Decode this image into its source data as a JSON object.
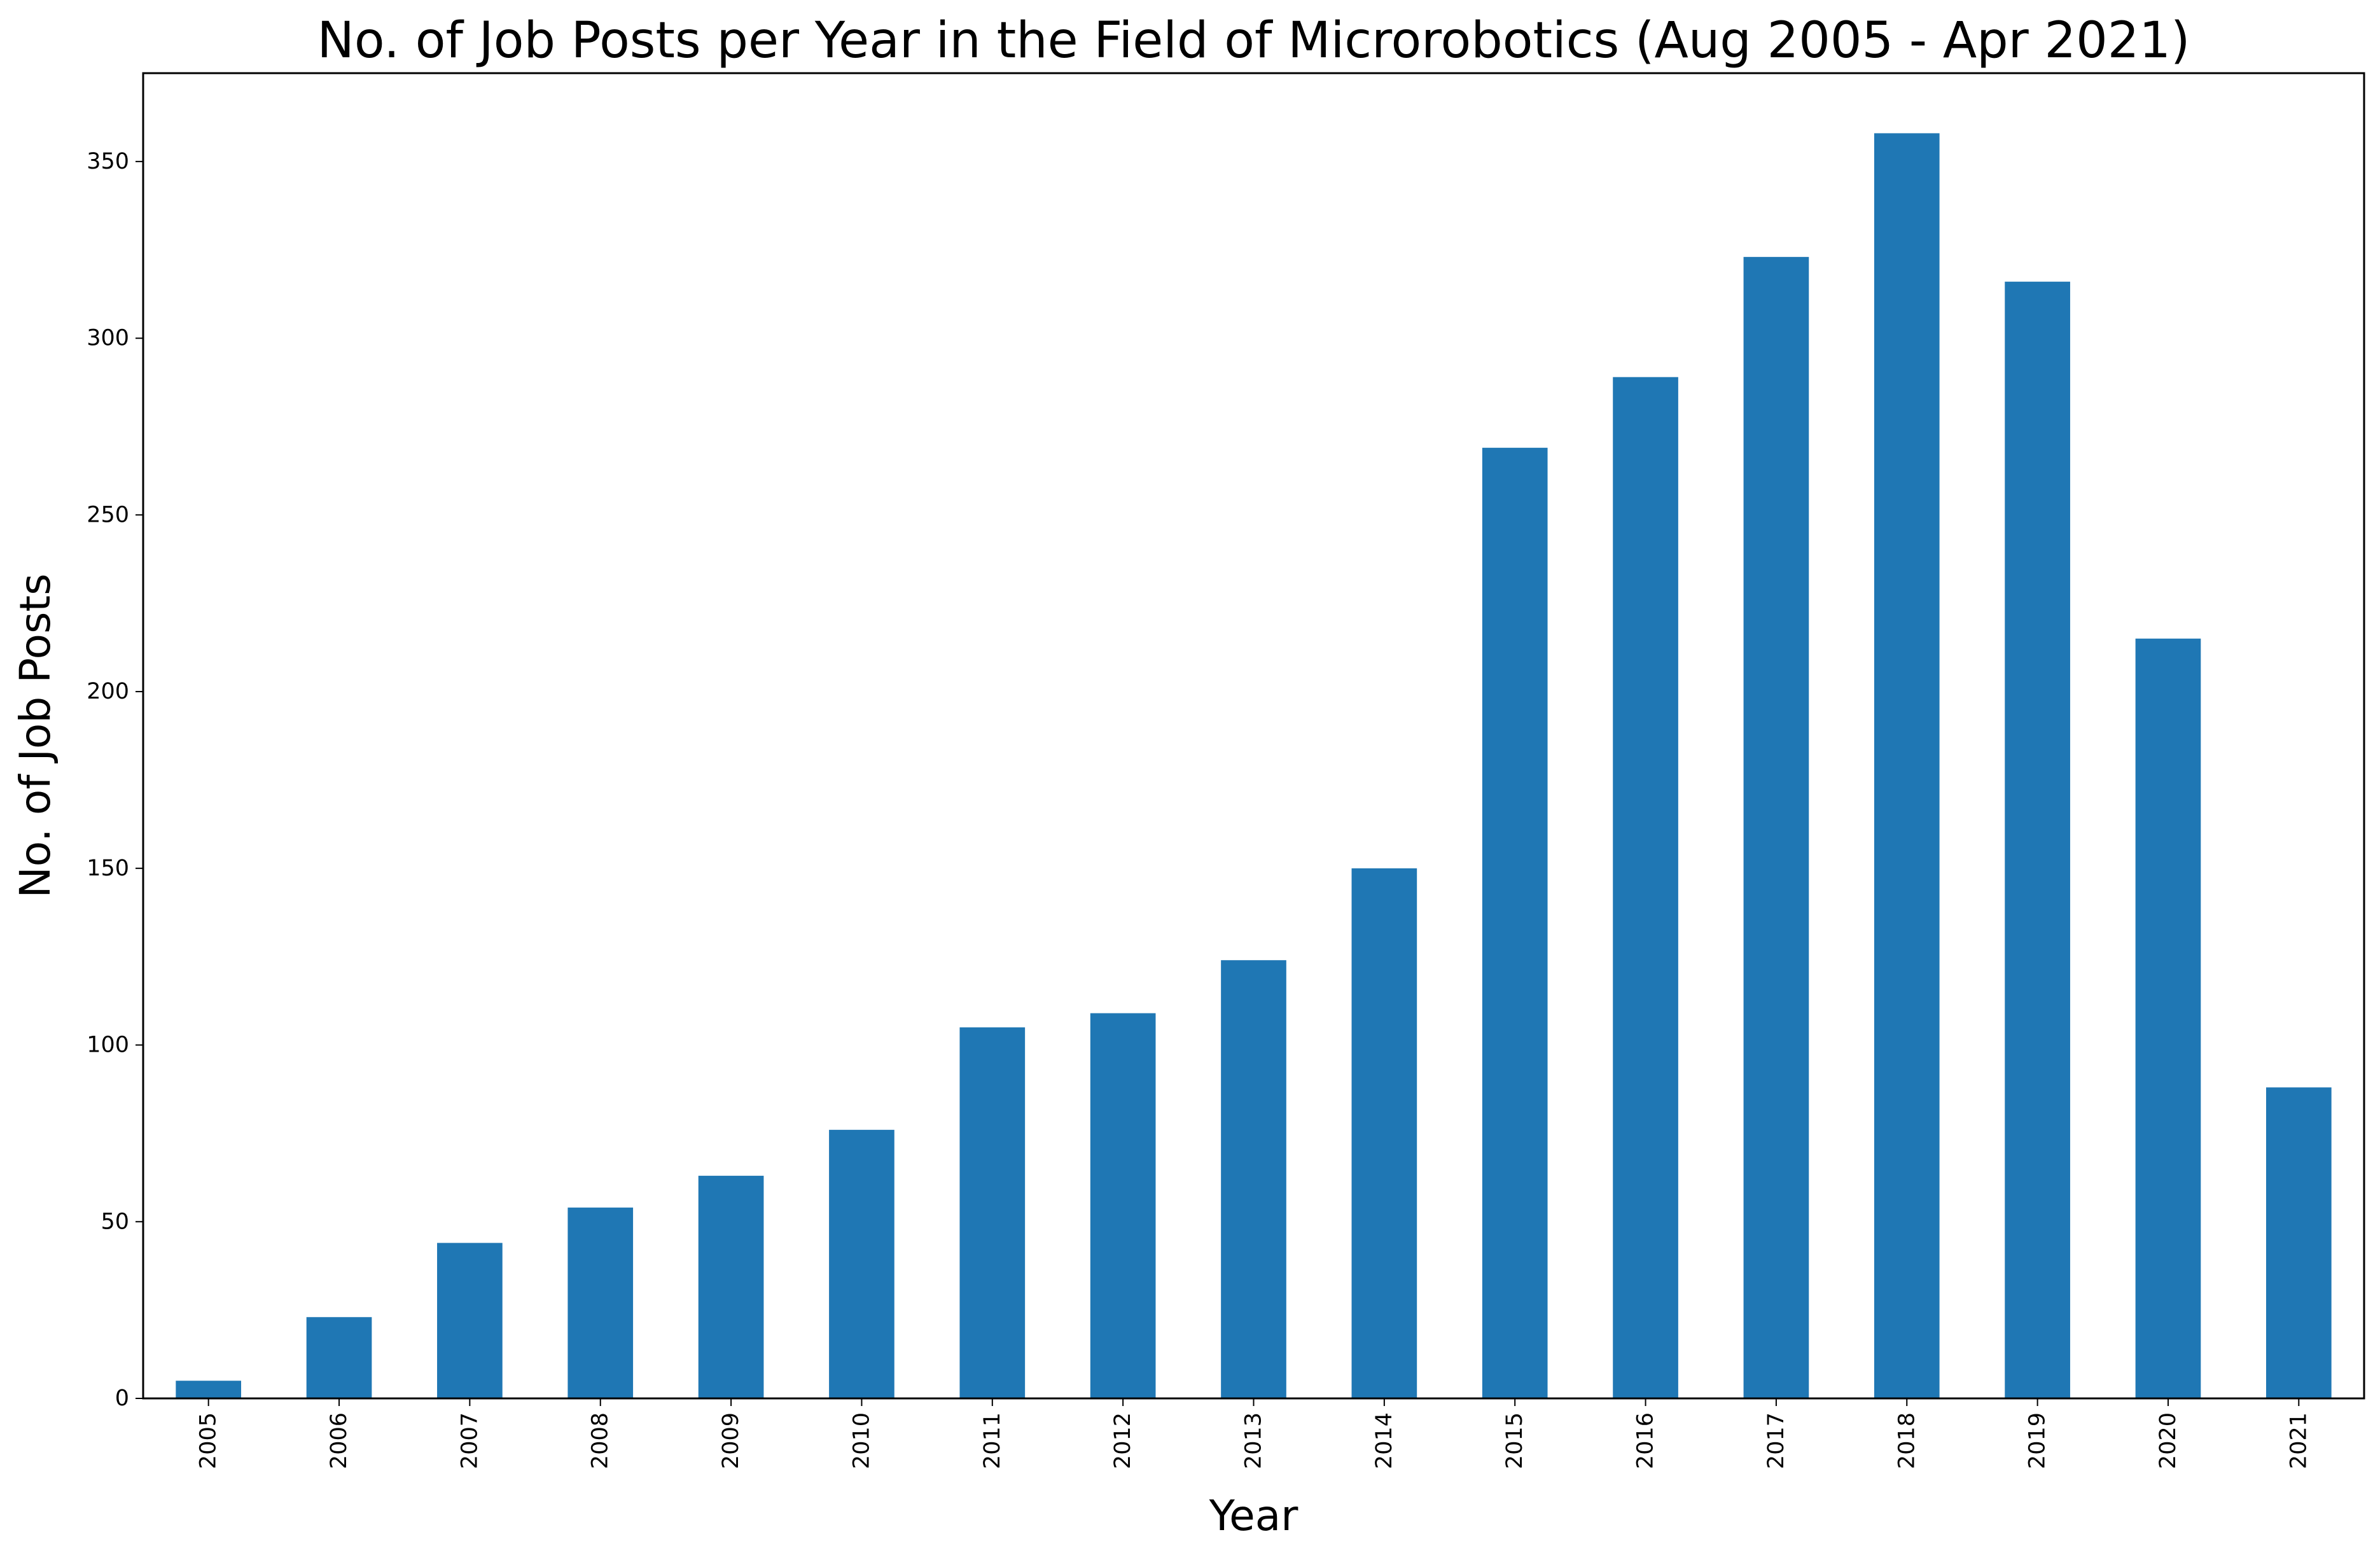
{
  "chart_data": {
    "type": "bar",
    "title": "No. of Job Posts per Year in the Field of Microrobotics (Aug 2005 - Apr 2021)",
    "xlabel": "Year",
    "ylabel": "No. of Job Posts",
    "categories": [
      "2005",
      "2006",
      "2007",
      "2008",
      "2009",
      "2010",
      "2011",
      "2012",
      "2013",
      "2014",
      "2015",
      "2016",
      "2017",
      "2018",
      "2019",
      "2020",
      "2021"
    ],
    "values": [
      5,
      23,
      44,
      54,
      63,
      76,
      105,
      109,
      124,
      150,
      269,
      289,
      323,
      358,
      316,
      215,
      88
    ],
    "ylim": [
      0,
      375
    ],
    "yticks": [
      0,
      50,
      100,
      150,
      200,
      250,
      300,
      350
    ],
    "bar_color": "#1f77b4",
    "grid": false,
    "legend": "none"
  }
}
